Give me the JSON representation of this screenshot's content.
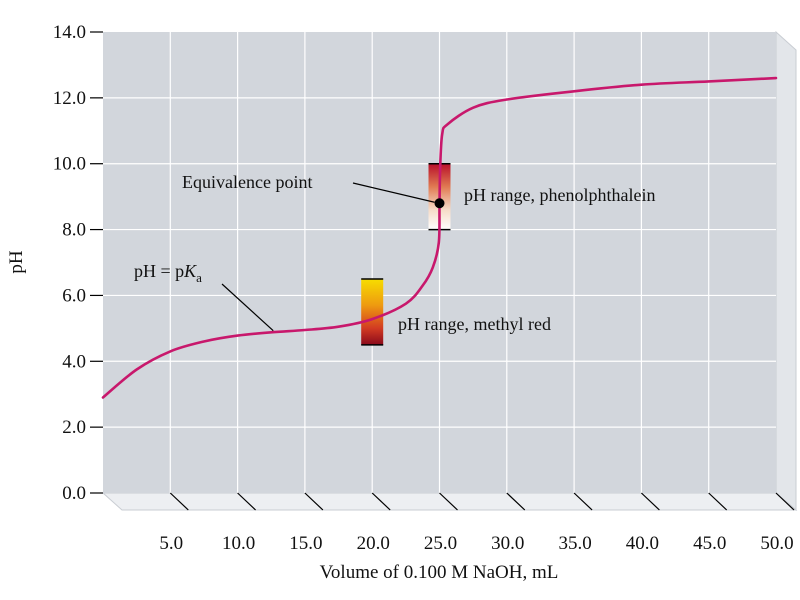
{
  "chart_data": {
    "type": "line",
    "xlabel": "Volume of 0.100 M NaOH, mL",
    "ylabel": "pH",
    "xlim": [
      0,
      50
    ],
    "ylim": [
      0,
      14
    ],
    "x_ticks": [
      "5.0",
      "10.0",
      "15.0",
      "20.0",
      "25.0",
      "30.0",
      "35.0",
      "40.0",
      "45.0",
      "50.0"
    ],
    "y_ticks": [
      "0.0",
      "2.0",
      "4.0",
      "6.0",
      "8.0",
      "10.0",
      "12.0",
      "14.0"
    ],
    "grid": true,
    "series": [
      {
        "color": "#c8186c",
        "points": [
          [
            0,
            2.9
          ],
          [
            2.5,
            3.75
          ],
          [
            5,
            4.3
          ],
          [
            7.5,
            4.6
          ],
          [
            10,
            4.78
          ],
          [
            12.5,
            4.88
          ],
          [
            15,
            4.95
          ],
          [
            17.5,
            5.05
          ],
          [
            20,
            5.28
          ],
          [
            22.5,
            5.75
          ],
          [
            23.75,
            6.3
          ],
          [
            24.5,
            6.85
          ],
          [
            24.95,
            7.6
          ],
          [
            25.0,
            8.7
          ],
          [
            25.05,
            9.9
          ],
          [
            25.2,
            10.9
          ],
          [
            25.6,
            11.2
          ],
          [
            27.5,
            11.7
          ],
          [
            30,
            11.95
          ],
          [
            35,
            12.2
          ],
          [
            40,
            12.4
          ],
          [
            45,
            12.5
          ],
          [
            50,
            12.6
          ]
        ]
      }
    ],
    "equivalence_point": {
      "x": 25.0,
      "y": 8.8,
      "label": "Equivalence point"
    },
    "pka_annotation": {
      "label_main": "pH = p",
      "label_k": "K",
      "label_sub": "a",
      "x": 12.5,
      "y": 4.9
    },
    "indicator_ranges": [
      {
        "name": "phenolphthalein",
        "label": "pH range, phenolphthalein",
        "x": 25.0,
        "ph_low": 8.0,
        "ph_high": 10.0,
        "colors": [
          "#ffffff",
          "#b80f2a"
        ]
      },
      {
        "name": "methyl-red",
        "label": "pH range, methyl red",
        "x": 20.0,
        "ph_low": 4.5,
        "ph_high": 6.5,
        "colors": [
          "#8a0a1c",
          "#f7dd00"
        ]
      }
    ],
    "colors": {
      "plot_bg": "#d2d6dc",
      "grid": "#ffffff",
      "curve": "#c8186c",
      "frame_side": "#e3e6ea",
      "frame_bottom": "#edeff2"
    }
  }
}
